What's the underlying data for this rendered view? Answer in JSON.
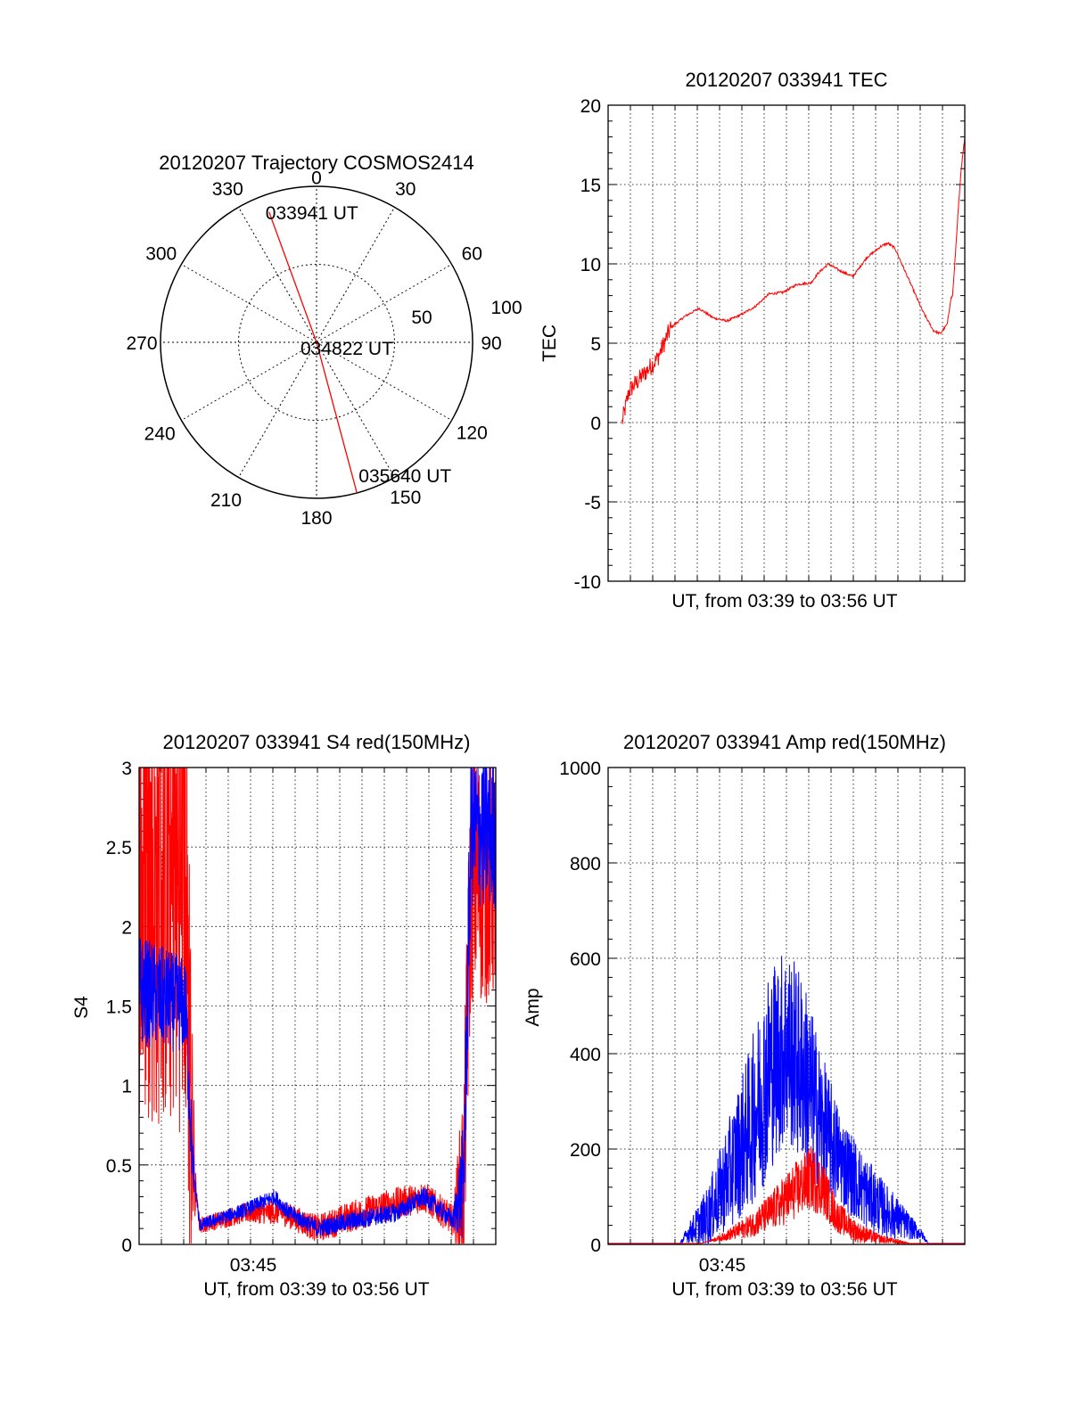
{
  "colors": {
    "red": "#ff0000",
    "blue": "#0000ff",
    "grid": "#000000"
  },
  "chart_data": [
    {
      "id": "polar",
      "type": "polar-trajectory",
      "title": "20120207 Trajectory COSMOS2414",
      "azimuth_labels": [
        "0",
        "30",
        "60",
        "90",
        "120",
        "150",
        "180",
        "210",
        "240",
        "270",
        "300",
        "330"
      ],
      "radial_labels": [
        "50",
        "100"
      ],
      "annotations": [
        "033941 UT",
        "034822 UT",
        "035640 UT"
      ],
      "trajectory": {
        "start": {
          "azimuth": 340,
          "elevation": 10
        },
        "mid": {
          "azimuth": 0,
          "elevation": 90
        },
        "end": {
          "azimuth": 165,
          "elevation": 0
        }
      }
    },
    {
      "id": "tec",
      "type": "line",
      "title": "20120207 033941 TEC",
      "xlabel": "UT, from 03:39 to 03:56 UT",
      "ylabel": "TEC",
      "ylim": [
        -10,
        20
      ],
      "yticks": [
        "-10",
        "-5",
        "0",
        "5",
        "10",
        "15",
        "20"
      ],
      "grid": true,
      "series": [
        {
          "color": "red",
          "noise": 0.6,
          "noise_until": 0.18,
          "points": [
            [
              0.04,
              0
            ],
            [
              0.06,
              2
            ],
            [
              0.1,
              3
            ],
            [
              0.14,
              4
            ],
            [
              0.18,
              6
            ],
            [
              0.22,
              6.7
            ],
            [
              0.26,
              7.2
            ],
            [
              0.3,
              6.6
            ],
            [
              0.34,
              6.4
            ],
            [
              0.38,
              6.8
            ],
            [
              0.42,
              7.3
            ],
            [
              0.46,
              8.1
            ],
            [
              0.5,
              8.2
            ],
            [
              0.54,
              8.7
            ],
            [
              0.58,
              8.8
            ],
            [
              0.6,
              9.4
            ],
            [
              0.63,
              10
            ],
            [
              0.66,
              9.6
            ],
            [
              0.7,
              9.2
            ],
            [
              0.74,
              10.4
            ],
            [
              0.78,
              11.1
            ],
            [
              0.8,
              11.3
            ],
            [
              0.82,
              11
            ],
            [
              0.86,
              9
            ],
            [
              0.9,
              7
            ],
            [
              0.93,
              5.8
            ],
            [
              0.95,
              5.6
            ],
            [
              0.97,
              6.2
            ],
            [
              0.98,
              7.8
            ],
            [
              0.985,
              8
            ],
            [
              0.99,
              9.5
            ],
            [
              1.0,
              13
            ],
            [
              1.01,
              16
            ],
            [
              1.02,
              18
            ]
          ]
        }
      ]
    },
    {
      "id": "s4",
      "type": "line",
      "title": "20120207 033941 S4 red(150MHz)",
      "xlabel": "UT, from 03:39 to 03:56 UT",
      "ylabel": "S4",
      "ylim": [
        0,
        3
      ],
      "yticks": [
        "0",
        "0.5",
        "1",
        "1.5",
        "2",
        "2.5",
        "3"
      ],
      "xticks": [
        {
          "label": "03:45",
          "frac": 0.32
        }
      ],
      "grid": true,
      "series": [
        {
          "color": "red",
          "profile": [
            [
              0,
              2.2
            ],
            [
              0.13,
              2.2
            ],
            [
              0.15,
              0.5
            ],
            [
              0.17,
              0.12
            ],
            [
              0.3,
              0.2
            ],
            [
              0.4,
              0.2
            ],
            [
              0.5,
              0.1
            ],
            [
              0.6,
              0.18
            ],
            [
              0.7,
              0.25
            ],
            [
              0.8,
              0.3
            ],
            [
              0.88,
              0.15
            ],
            [
              0.91,
              0.4
            ],
            [
              0.93,
              2.3
            ],
            [
              1.0,
              2.3
            ]
          ],
          "noise": [
            [
              0,
              1.5
            ],
            [
              0.14,
              1.5
            ],
            [
              0.16,
              0.05
            ],
            [
              0.6,
              0.1
            ],
            [
              0.88,
              0.1
            ],
            [
              0.92,
              0.8
            ],
            [
              1.0,
              0.8
            ]
          ],
          "clip": [
            [
              0,
              0.14
            ]
          ]
        },
        {
          "color": "blue",
          "profile": [
            [
              0,
              1.6
            ],
            [
              0.13,
              1.5
            ],
            [
              0.15,
              0.5
            ],
            [
              0.17,
              0.12
            ],
            [
              0.3,
              0.22
            ],
            [
              0.38,
              0.3
            ],
            [
              0.42,
              0.2
            ],
            [
              0.5,
              0.1
            ],
            [
              0.6,
              0.15
            ],
            [
              0.72,
              0.2
            ],
            [
              0.8,
              0.3
            ],
            [
              0.88,
              0.15
            ],
            [
              0.91,
              0.4
            ],
            [
              0.93,
              2.6
            ],
            [
              1.0,
              2.6
            ]
          ],
          "noise": [
            [
              0,
              0.35
            ],
            [
              0.14,
              0.3
            ],
            [
              0.16,
              0.04
            ],
            [
              0.6,
              0.06
            ],
            [
              0.88,
              0.06
            ],
            [
              0.92,
              0.5
            ],
            [
              1.0,
              0.5
            ]
          ]
        }
      ]
    },
    {
      "id": "amp",
      "type": "line",
      "title": "20120207 033941 Amp red(150MHz)",
      "xlabel": "UT, from 03:39 to 03:56 UT",
      "ylabel": "Amp",
      "ylim": [
        0,
        1000
      ],
      "yticks": [
        "0",
        "200",
        "400",
        "600",
        "800",
        "1000"
      ],
      "xticks": [
        {
          "label": "03:45",
          "frac": 0.32
        }
      ],
      "grid": true,
      "series": [
        {
          "color": "blue",
          "profile": [
            [
              0,
              0
            ],
            [
              0.2,
              0
            ],
            [
              0.22,
              20
            ],
            [
              0.28,
              60
            ],
            [
              0.34,
              150
            ],
            [
              0.4,
              250
            ],
            [
              0.46,
              380
            ],
            [
              0.5,
              420
            ],
            [
              0.55,
              360
            ],
            [
              0.6,
              250
            ],
            [
              0.66,
              170
            ],
            [
              0.72,
              110
            ],
            [
              0.78,
              70
            ],
            [
              0.82,
              50
            ],
            [
              0.88,
              20
            ],
            [
              0.9,
              0
            ],
            [
              1.0,
              0
            ]
          ],
          "noise": [
            [
              0,
              0
            ],
            [
              0.2,
              0
            ],
            [
              0.3,
              80
            ],
            [
              0.45,
              220
            ],
            [
              0.55,
              200
            ],
            [
              0.65,
              100
            ],
            [
              0.8,
              50
            ],
            [
              0.9,
              0
            ],
            [
              1.0,
              0
            ]
          ]
        },
        {
          "color": "red",
          "profile": [
            [
              0,
              0
            ],
            [
              0.25,
              0
            ],
            [
              0.32,
              15
            ],
            [
              0.4,
              40
            ],
            [
              0.46,
              70
            ],
            [
              0.52,
              110
            ],
            [
              0.57,
              140
            ],
            [
              0.6,
              120
            ],
            [
              0.64,
              60
            ],
            [
              0.7,
              25
            ],
            [
              0.76,
              12
            ],
            [
              0.86,
              0
            ],
            [
              1.0,
              0
            ]
          ],
          "noise": [
            [
              0,
              0
            ],
            [
              0.28,
              0
            ],
            [
              0.4,
              25
            ],
            [
              0.52,
              60
            ],
            [
              0.58,
              70
            ],
            [
              0.64,
              35
            ],
            [
              0.76,
              10
            ],
            [
              0.86,
              0
            ],
            [
              1.0,
              0
            ]
          ]
        }
      ]
    }
  ]
}
